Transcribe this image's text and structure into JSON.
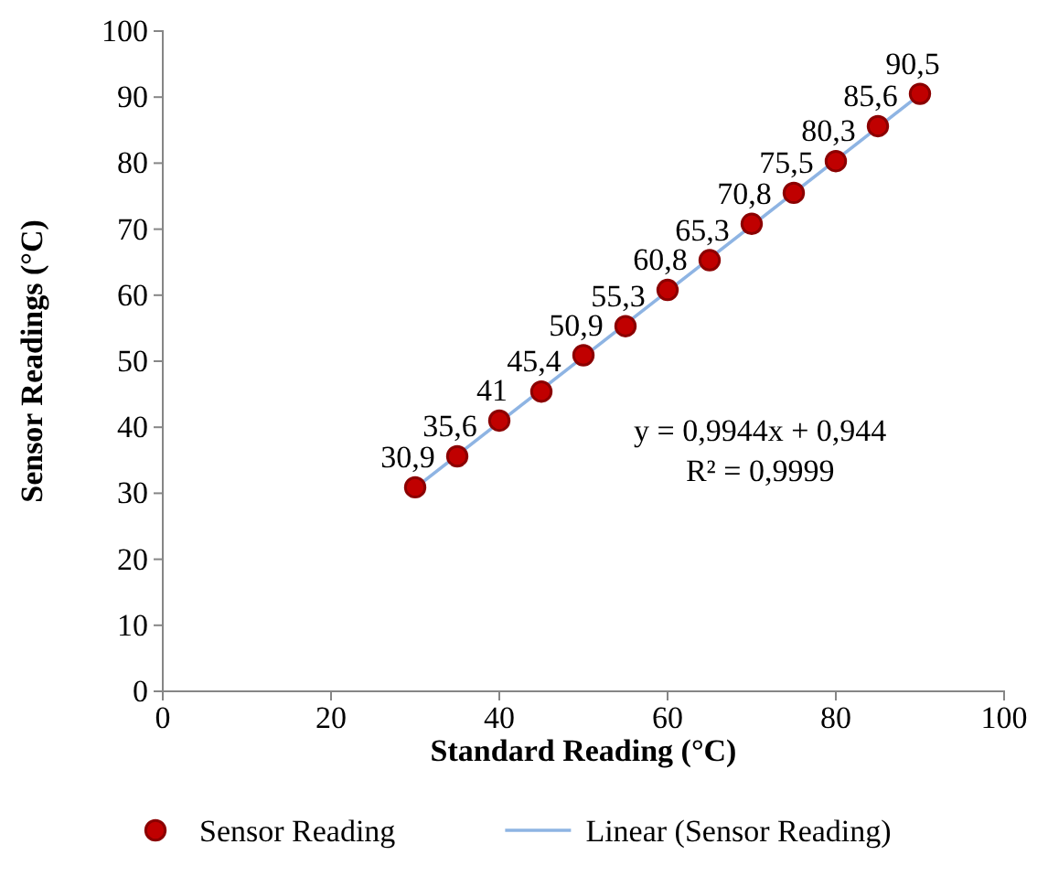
{
  "chart_data": {
    "type": "scatter",
    "xlabel": "Standard Reading (°C)",
    "ylabel": "Sensor Readings (°C)",
    "xlim": [
      0,
      100
    ],
    "xticks": [
      0,
      20,
      40,
      60,
      80,
      100
    ],
    "ylim": [
      0,
      100
    ],
    "yticks": [
      0,
      10,
      20,
      30,
      40,
      50,
      60,
      70,
      80,
      90,
      100
    ],
    "grid": false,
    "legend": "bottom",
    "series": [
      {
        "name": "Sensor Reading",
        "marker": "circle",
        "color": "#c00000",
        "x": [
          30,
          35,
          40,
          45,
          50,
          55,
          60,
          65,
          70,
          75,
          80,
          85,
          90
        ],
        "values": [
          30.9,
          35.6,
          41,
          45.4,
          50.9,
          55.3,
          60.8,
          65.3,
          70.8,
          75.5,
          80.3,
          85.6,
          90.5
        ],
        "value_labels": [
          "30,9",
          "35,6",
          "41",
          "45,4",
          "50,9",
          "55,3",
          "60,8",
          "65,3",
          "70,8",
          "75,5",
          "80,3",
          "85,6",
          "90,5"
        ]
      },
      {
        "name": "Linear (Sensor Reading)",
        "type": "line",
        "color": "#8eb4e3",
        "x": [
          30,
          90
        ],
        "values": [
          30.8,
          90.4
        ],
        "line_style": "solid"
      }
    ],
    "annotations": [
      "y = 0,9944x + 0,944",
      "R² = 0,9999"
    ]
  }
}
